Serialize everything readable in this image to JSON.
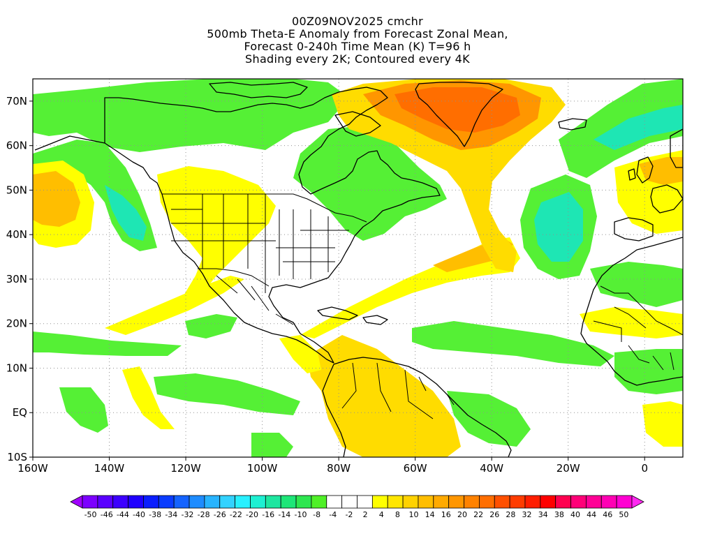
{
  "title": {
    "line1": "00Z09NOV2025 cmchr",
    "line2": "500mb Theta-E Anomaly from Forecast Zonal Mean,",
    "line3": "Forecast 0-240h Time Mean (K) T=96 h",
    "line4": "Shading every 2K; Contoured every 4K"
  },
  "map": {
    "projection": "cylindrical",
    "lon_range": [
      -160,
      10
    ],
    "lat_range": [
      -10,
      75
    ],
    "lat_labels": [
      {
        "lat": 70,
        "text": "70N"
      },
      {
        "lat": 60,
        "text": "60N"
      },
      {
        "lat": 50,
        "text": "50N"
      },
      {
        "lat": 40,
        "text": "40N"
      },
      {
        "lat": 30,
        "text": "30N"
      },
      {
        "lat": 20,
        "text": "20N"
      },
      {
        "lat": 10,
        "text": "10N"
      },
      {
        "lat": 0,
        "text": "EQ"
      },
      {
        "lat": -10,
        "text": "10S"
      }
    ],
    "lon_labels": [
      {
        "lon": -160,
        "text": "160W"
      },
      {
        "lon": -140,
        "text": "140W"
      },
      {
        "lon": -120,
        "text": "120W"
      },
      {
        "lon": -100,
        "text": "100W"
      },
      {
        "lon": -80,
        "text": "80W"
      },
      {
        "lon": -60,
        "text": "60W"
      },
      {
        "lon": -40,
        "text": "40W"
      },
      {
        "lon": -20,
        "text": "20W"
      },
      {
        "lon": 0,
        "text": "0"
      }
    ],
    "grid": "dotted"
  },
  "colorbar": {
    "labels": [
      "-50",
      "-46",
      "-44",
      "-40",
      "-38",
      "-34",
      "-32",
      "-28",
      "-26",
      "-22",
      "-20",
      "-16",
      "-14",
      "-10",
      "-8",
      "-4",
      "-2",
      "2",
      "4",
      "8",
      "10",
      "14",
      "16",
      "20",
      "22",
      "26",
      "28",
      "32",
      "34",
      "38",
      "40",
      "44",
      "46",
      "50"
    ],
    "colors": [
      "#a000ff",
      "#7c00ff",
      "#5a00ff",
      "#3c00ff",
      "#2000ff",
      "#0a1eff",
      "#0a3cff",
      "#1463ff",
      "#1e8cff",
      "#28b4ff",
      "#32d2ff",
      "#28f0ff",
      "#1ef0d2",
      "#1ee6a0",
      "#1ee678",
      "#2ee650",
      "#50f028",
      "#ffffff",
      "#ffffff",
      "#ffffff",
      "#ffff00",
      "#ffe600",
      "#ffd200",
      "#ffbe00",
      "#ffaa00",
      "#ff9600",
      "#ff8200",
      "#ff6e00",
      "#ff5000",
      "#ff3c00",
      "#ff1e00",
      "#ff0000",
      "#ff0050",
      "#ff0078",
      "#ff0096",
      "#ff00b4",
      "#ff00d2",
      "#ff28f0"
    ]
  },
  "shading_colors": {
    "green_light": "#55f035",
    "green": "#1ee678",
    "teal": "#1ee6b4",
    "yellow": "#ffff00",
    "yellow_dark": "#ffdc00",
    "orange_light": "#ffbe00",
    "orange": "#ff9600",
    "orange_dark": "#ff6e00"
  }
}
